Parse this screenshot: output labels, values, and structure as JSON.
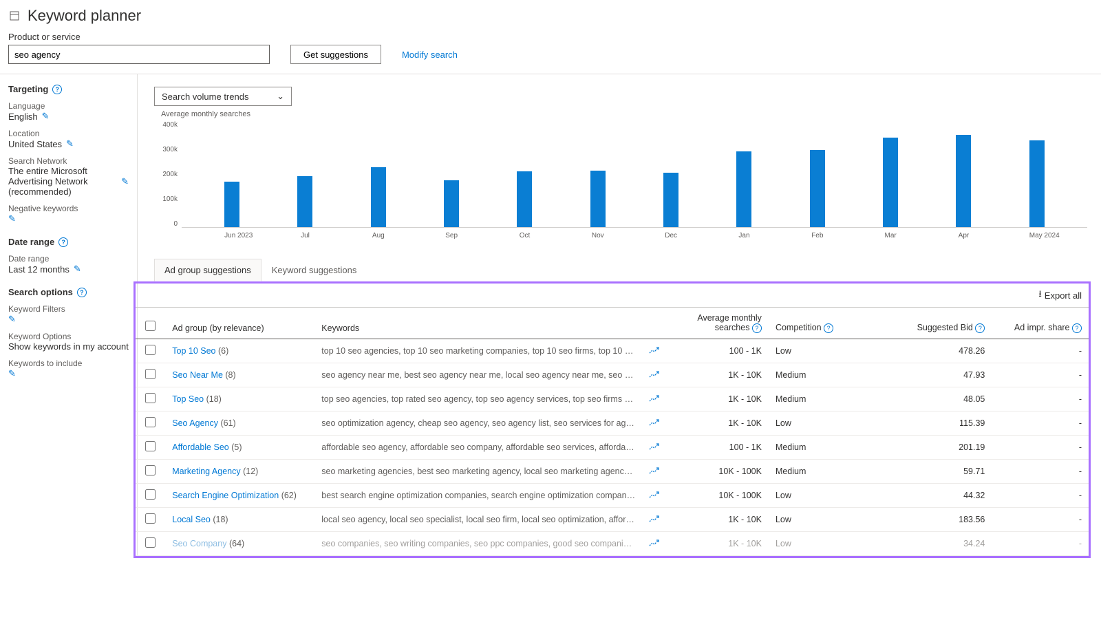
{
  "page_title": "Keyword planner",
  "toolbar": {
    "label": "Product or service",
    "input_value": "seo agency",
    "suggest_btn": "Get suggestions",
    "modify_link": "Modify search"
  },
  "sidebar": {
    "targeting_title": "Targeting",
    "language_label": "Language",
    "language_value": "English",
    "location_label": "Location",
    "location_value": "United States",
    "network_label": "Search Network",
    "network_value": "The entire Microsoft Advertising Network (recommended)",
    "neg_kw_label": "Negative keywords",
    "date_range_title": "Date range",
    "date_range_label": "Date range",
    "date_range_value": "Last 12 months",
    "search_options_title": "Search options",
    "kw_filters_label": "Keyword Filters",
    "kw_options_label": "Keyword Options",
    "kw_options_value": "Show keywords in my account",
    "kw_include_label": "Keywords to include"
  },
  "chart": {
    "dropdown_selected": "Search volume trends",
    "subtitle": "Average monthly searches",
    "ymax": 400000,
    "yticks": [
      "400k",
      "300k",
      "200k",
      "100k",
      "0"
    ],
    "bar_color": "#0a7ed3",
    "bars": [
      {
        "label": "Jun 2023",
        "value": 170000
      },
      {
        "label": "Jul",
        "value": 190000
      },
      {
        "label": "Aug",
        "value": 225000
      },
      {
        "label": "Sep",
        "value": 175000
      },
      {
        "label": "Oct",
        "value": 210000
      },
      {
        "label": "Nov",
        "value": 212000
      },
      {
        "label": "Dec",
        "value": 205000
      },
      {
        "label": "Jan",
        "value": 285000
      },
      {
        "label": "Feb",
        "value": 290000
      },
      {
        "label": "Mar",
        "value": 335000
      },
      {
        "label": "Apr",
        "value": 345000
      },
      {
        "label": "May 2024",
        "value": 325000
      }
    ]
  },
  "tabs": {
    "adgroup": "Ad group suggestions",
    "keyword": "Keyword suggestions"
  },
  "table": {
    "export_label": "Export all",
    "columns": {
      "adgroup": "Ad group (by relevance)",
      "keywords": "Keywords",
      "searches": "Average monthly searches",
      "competition": "Competition",
      "bid": "Suggested Bid",
      "impr": "Ad impr. share"
    },
    "rows": [
      {
        "name": "Top 10 Seo",
        "count": "(6)",
        "keywords": "top 10 seo agencies, top 10 seo marketing companies, top 10 seo firms, top 10 seo companies,...",
        "searches": "100 - 1K",
        "competition": "Low",
        "bid": "478.26",
        "impr": "-"
      },
      {
        "name": "Seo Near Me",
        "count": "(8)",
        "keywords": "seo agency near me, best seo agency near me, local seo agency near me, seo companies near ...",
        "searches": "1K - 10K",
        "competition": "Medium",
        "bid": "47.93",
        "impr": "-"
      },
      {
        "name": "Top Seo",
        "count": "(18)",
        "keywords": "top seo agencies, top rated seo agency, top seo agency services, top seo firms 2013, top seo fir...",
        "searches": "1K - 10K",
        "competition": "Medium",
        "bid": "48.05",
        "impr": "-"
      },
      {
        "name": "Seo Agency",
        "count": "(61)",
        "keywords": "seo optimization agency, cheap seo agency, seo agency list, seo services for agencies, professio...",
        "searches": "1K - 10K",
        "competition": "Low",
        "bid": "115.39",
        "impr": "-"
      },
      {
        "name": "Affordable Seo",
        "count": "(5)",
        "keywords": "affordable seo agency, affordable seo company, affordable seo services, affordable seo, afforda...",
        "searches": "100 - 1K",
        "competition": "Medium",
        "bid": "201.19",
        "impr": "-"
      },
      {
        "name": "Marketing Agency",
        "count": "(12)",
        "keywords": "seo marketing agencies, best seo marketing agency, local seo marketing agency, seo marketin...",
        "searches": "10K - 100K",
        "competition": "Medium",
        "bid": "59.71",
        "impr": "-"
      },
      {
        "name": "Search Engine Optimization",
        "count": "(62)",
        "keywords": "best search engine optimization companies, search engine optimization companies, top search ...",
        "searches": "10K - 100K",
        "competition": "Low",
        "bid": "44.32",
        "impr": "-"
      },
      {
        "name": "Local Seo",
        "count": "(18)",
        "keywords": "local seo agency, local seo specialist, local seo firm, local seo optimization, affordable local seo,...",
        "searches": "1K - 10K",
        "competition": "Low",
        "bid": "183.56",
        "impr": "-"
      },
      {
        "name": "Seo Company",
        "count": "(64)",
        "keywords": "seo companies, seo writing companies, seo ppc companies, good seo companies, reputable se...",
        "searches": "1K - 10K",
        "competition": "Low",
        "bid": "34.24",
        "impr": "-",
        "faded": true
      }
    ]
  }
}
